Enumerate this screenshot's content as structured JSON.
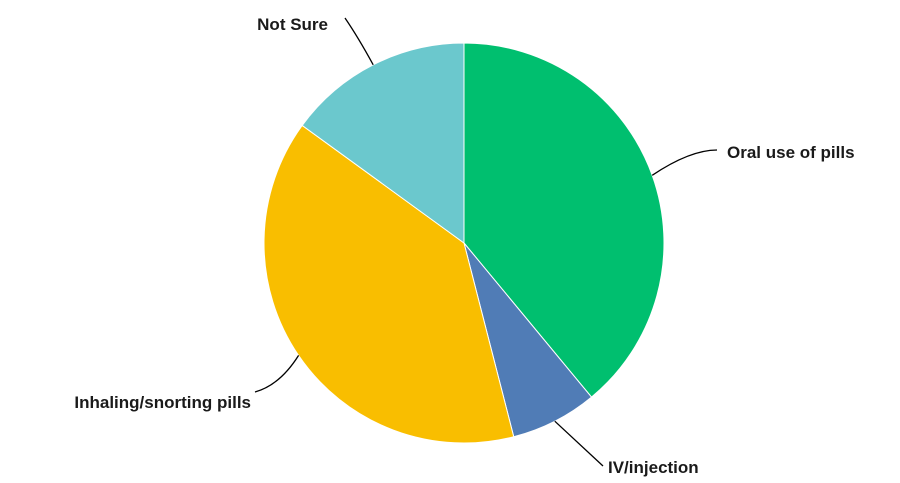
{
  "chart_data": {
    "type": "pie",
    "title": "",
    "slices": [
      {
        "label": "Oral use of pills",
        "value": 39,
        "color": "#00BF6F"
      },
      {
        "label": "IV/injection",
        "value": 7,
        "color": "#507CB6"
      },
      {
        "label": "Inhaling/snorting pills",
        "value": 39,
        "color": "#F9BE00"
      },
      {
        "label": "Not Sure",
        "value": 15,
        "color": "#6BC8CD"
      }
    ],
    "start_angle": "12 o'clock",
    "direction": "clockwise",
    "legend": "none",
    "labels": "outside with leader lines"
  }
}
